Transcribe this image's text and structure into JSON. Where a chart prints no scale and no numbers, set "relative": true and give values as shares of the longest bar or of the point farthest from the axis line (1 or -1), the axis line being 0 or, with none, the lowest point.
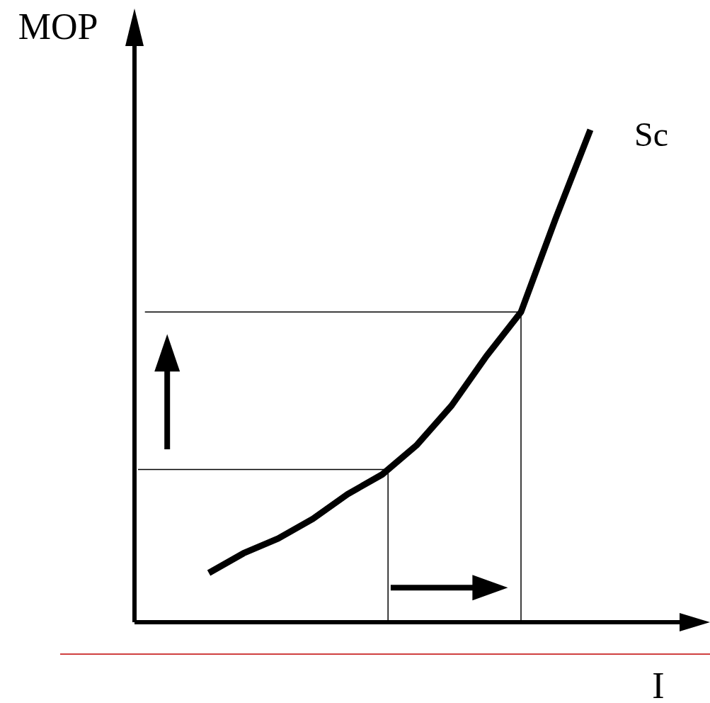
{
  "chart_data": {
    "type": "line",
    "relative": true,
    "xlabel": "I",
    "ylabel": "MOP",
    "categories": [
      null,
      null,
      null,
      null,
      null,
      null,
      null,
      null,
      null,
      null,
      null,
      null
    ],
    "legend": false,
    "grid": false,
    "marker": "none",
    "line_style": "solid",
    "series": [
      {
        "name": "Sc",
        "color": "#000000",
        "values": [
          0.1,
          0.14,
          0.17,
          0.21,
          0.26,
          0.3,
          0.36,
          0.44,
          0.54,
          0.63,
          0.82,
          1
        ]
      }
    ],
    "ref_lines": [
      {
        "axis": "y",
        "value": 0.31,
        "color": "#000000"
      },
      {
        "axis": "y",
        "value": 0.63,
        "color": "#000000"
      }
    ]
  }
}
